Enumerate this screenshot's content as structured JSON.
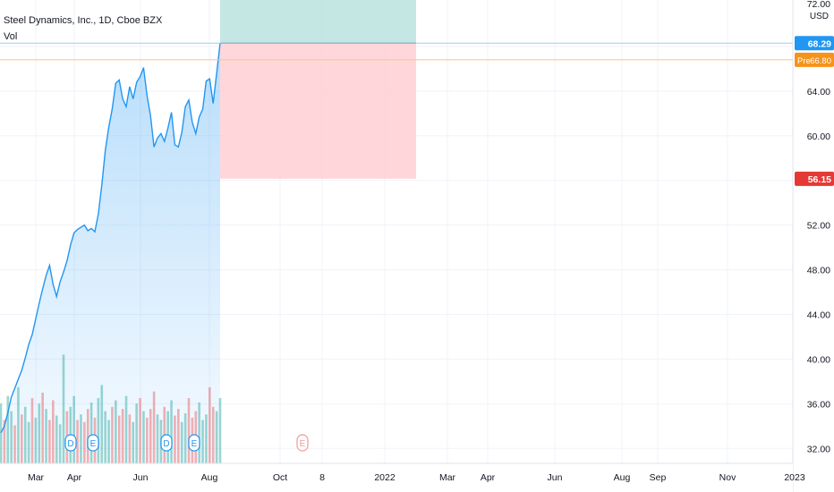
{
  "header": {
    "symbol_title": "Steel Dynamics, Inc., 1D, Cboe BZX",
    "volume_label": "Vol"
  },
  "price_scale": {
    "currency": "USD",
    "top_tick": "72.00"
  },
  "badges": {
    "last_price": {
      "text": "68.29",
      "color": "#2196f3"
    },
    "pre_market": {
      "label": "Pre",
      "value": "66.80",
      "color": "#f7931a"
    },
    "stop_level": {
      "text": "56.15",
      "color": "#e53935"
    }
  },
  "event_markers": [
    "D",
    "E",
    "D",
    "E",
    "E"
  ],
  "colors": {
    "line": "#2196f3",
    "vol_up": "#26a69a",
    "vol_down": "#ef5350",
    "target_zone": "#b2dfdb",
    "stop_zone": "#ffcdd2",
    "grid": "#f0f3fa"
  },
  "chart_data": {
    "type": "area",
    "title": "Steel Dynamics, Inc., 1D, Cboe BZX",
    "y_axis": {
      "ticks": [
        32.0,
        36.0,
        40.0,
        44.0,
        48.0,
        52.0,
        56.0,
        60.0,
        64.0,
        68.0
      ],
      "tick_labels": [
        "32.00",
        "36.00",
        "40.00",
        "44.00",
        "48.00",
        "52.00",
        "56.00",
        "60.00",
        "64.00",
        "68.00"
      ],
      "range": [
        30.5,
        72
      ]
    },
    "x_axis": {
      "labels": [
        "Mar",
        "Apr",
        "Jun",
        "Aug",
        "Oct",
        "8",
        "2022",
        "Mar",
        "Apr",
        "Jun",
        "Aug",
        "Sep",
        "Nov",
        "2023"
      ]
    },
    "grid": true,
    "position": {
      "entry": 68.29,
      "target": 72.0,
      "stop": 56.15
    },
    "price_series": [
      33.4,
      34.0,
      35.2,
      36.6,
      37.4,
      38.2,
      39.0,
      40.1,
      41.3,
      42.2,
      43.6,
      45.0,
      46.3,
      47.5,
      48.4,
      46.7,
      45.6,
      46.9,
      47.8,
      48.8,
      50.2,
      51.3,
      51.6,
      51.8,
      52.0,
      51.5,
      51.7,
      51.4,
      53.0,
      55.6,
      58.7,
      60.8,
      62.4,
      64.7,
      65.0,
      63.3,
      62.6,
      64.4,
      63.3,
      64.8,
      65.3,
      66.1,
      63.6,
      61.8,
      59.0,
      59.8,
      60.2,
      59.5,
      60.7,
      62.1,
      59.2,
      59.0,
      60.3,
      62.6,
      63.2,
      61.2,
      60.2,
      61.7,
      62.4,
      64.9,
      65.1,
      62.9,
      65.6,
      68.3
    ],
    "volume_series": [
      0.55,
      0.4,
      0.62,
      0.48,
      0.35,
      0.7,
      0.45,
      0.52,
      0.38,
      0.6,
      0.42,
      0.55,
      0.65,
      0.5,
      0.4,
      0.58,
      0.44,
      0.36,
      1.0,
      0.48,
      0.52,
      0.62,
      0.4,
      0.45,
      0.38,
      0.5,
      0.56,
      0.42,
      0.6,
      0.72,
      0.48,
      0.4,
      0.52,
      0.58,
      0.44,
      0.5,
      0.62,
      0.45,
      0.38,
      0.55,
      0.6,
      0.48,
      0.42,
      0.5,
      0.66,
      0.45,
      0.4,
      0.52,
      0.48,
      0.58,
      0.44,
      0.5,
      0.38,
      0.46,
      0.6,
      0.42,
      0.48,
      0.56,
      0.4,
      0.45,
      0.7,
      0.52,
      0.48,
      0.6
    ],
    "volume_up": [
      true,
      false,
      true,
      true,
      false,
      true,
      false,
      true,
      true,
      false,
      true,
      true,
      false,
      true,
      false,
      false,
      true,
      true,
      true,
      false,
      true,
      true,
      false,
      true,
      false,
      false,
      true,
      false,
      true,
      true,
      true,
      true,
      false,
      true,
      false,
      false,
      true,
      false,
      true,
      true,
      false,
      true,
      false,
      false,
      false,
      true,
      true,
      false,
      true,
      true,
      false,
      false,
      true,
      true,
      false,
      false,
      false,
      true,
      true,
      true,
      false,
      false,
      true,
      true
    ]
  }
}
